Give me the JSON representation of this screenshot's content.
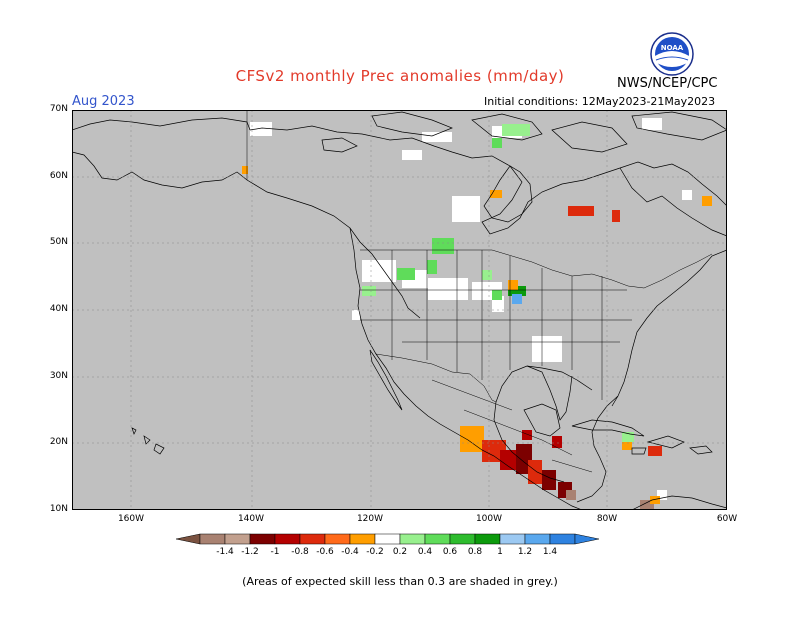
{
  "header": {
    "title": "CFSv2 monthly Prec anomalies (mm/day)",
    "month": "Aug 2023",
    "initial_conditions": "Initial conditions: 12May2023-21May2023",
    "agency": "NWS/NCEP/CPC",
    "logo_text": "NOAA"
  },
  "footer": {
    "note": "(Areas of expected skill less than 0.3 are shaded in grey.)"
  },
  "axes": {
    "lat_labels": [
      "70N",
      "60N",
      "50N",
      "40N",
      "30N",
      "20N",
      "10N"
    ],
    "lon_labels": [
      "160W",
      "140W",
      "120W",
      "100W",
      "80W",
      "60W"
    ]
  },
  "colorbar": {
    "labels": [
      "-1.4",
      "-1.2",
      "-1",
      "-0.8",
      "-0.6",
      "-0.4",
      "-0.2",
      "0.2",
      "0.4",
      "0.6",
      "0.8",
      "1",
      "1.2",
      "1.4"
    ],
    "colors": [
      "#7a5240",
      "#a98272",
      "#c2a08e",
      "#7c0000",
      "#b40000",
      "#dd2a0c",
      "#ff6a1a",
      "#ff9e00",
      "#ffffff",
      "#98f08e",
      "#5fdc5a",
      "#2ebc2e",
      "#0c9a0c",
      "#9cc9f2",
      "#5aa8ee",
      "#2e82e0"
    ]
  },
  "map": {
    "background_color": "#c0c0c0",
    "line_color": "#000000"
  }
}
